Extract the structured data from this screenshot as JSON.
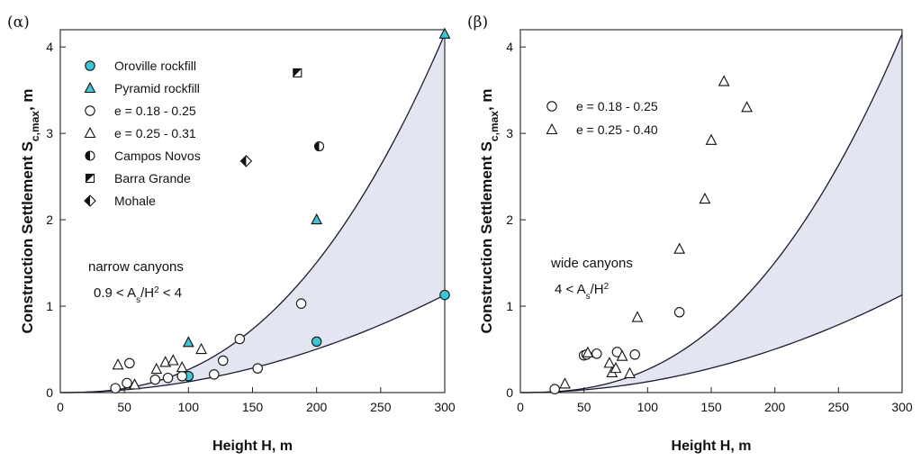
{
  "chart_data": [
    {
      "type": "scatter",
      "panel_label": "(α)",
      "ylabel": "Construction Settlement S",
      "ylabel_sub": "c,max",
      "ylabel_unit": ", m",
      "xlabel": "Height H, m",
      "xlim": [
        0,
        300
      ],
      "ylim": [
        0,
        4.2
      ],
      "xticks": [
        0,
        50,
        100,
        150,
        200,
        250,
        300
      ],
      "yticks": [
        0,
        1,
        2,
        3,
        4
      ],
      "grid": false,
      "legend_position": "top-left",
      "annotation_line1": "narrow canyons",
      "annotation_line2_prefix": "0.9 < A",
      "annotation_line2_sub": "s",
      "annotation_line2_mid": "/H",
      "annotation_line2_sup": "2",
      "annotation_line2_suffix": " < 4",
      "envelope": {
        "upper": {
          "x_end": 300,
          "y_end": 4.15,
          "exponent": 2.5
        },
        "lower": {
          "x_end": 300,
          "y_end": 1.13,
          "exponent": 2.0
        },
        "fill": "#e3e6f1"
      },
      "series": [
        {
          "name": "Oroville rockfill",
          "marker": "circle",
          "fill": "#3cc6d6",
          "points": [
            [
              100,
              0.19
            ],
            [
              200,
              0.59
            ],
            [
              300,
              1.13
            ]
          ]
        },
        {
          "name": "Pyramid rockfill",
          "marker": "triangle",
          "fill": "#3cc6d6",
          "points": [
            [
              100,
              0.58
            ],
            [
              200,
              2.0
            ],
            [
              300,
              4.15
            ]
          ]
        },
        {
          "name": "e = 0.18 - 0.25",
          "marker": "circle",
          "fill": "#ffffff",
          "points": [
            [
              43,
              0.05
            ],
            [
              52,
              0.11
            ],
            [
              54,
              0.34
            ],
            [
              74,
              0.15
            ],
            [
              84,
              0.17
            ],
            [
              95,
              0.19
            ],
            [
              120,
              0.21
            ],
            [
              127,
              0.37
            ],
            [
              140,
              0.62
            ],
            [
              154,
              0.28
            ],
            [
              188,
              1.03
            ]
          ]
        },
        {
          "name": "e = 0.25 - 0.31",
          "marker": "triangle",
          "fill": "#ffffff",
          "points": [
            [
              45,
              0.32
            ],
            [
              58,
              0.09
            ],
            [
              75,
              0.27
            ],
            [
              82,
              0.35
            ],
            [
              88,
              0.37
            ],
            [
              95,
              0.29
            ],
            [
              110,
              0.5
            ]
          ]
        },
        {
          "name": "Campos Novos",
          "marker": "half-circle",
          "fill": "#111111",
          "points": [
            [
              202,
              2.85
            ]
          ]
        },
        {
          "name": "Barra Grande",
          "marker": "half-square",
          "fill": "#111111",
          "points": [
            [
              185,
              3.7
            ]
          ]
        },
        {
          "name": "Mohale",
          "marker": "half-diamond",
          "fill": "#111111",
          "points": [
            [
              145,
              2.68
            ]
          ]
        }
      ]
    },
    {
      "type": "scatter",
      "panel_label": "(β)",
      "ylabel": "Construction Settlement S",
      "ylabel_sub": "c,max",
      "ylabel_unit": ", m",
      "xlabel": "Height H, m",
      "xlim": [
        0,
        300
      ],
      "ylim": [
        0,
        4.2
      ],
      "xticks": [
        0,
        50,
        100,
        150,
        200,
        250,
        300
      ],
      "yticks": [
        0,
        1,
        2,
        3,
        4
      ],
      "grid": false,
      "legend_position": "top-left",
      "annotation_line1": "wide canyons",
      "annotation_line2_prefix": "4 < A",
      "annotation_line2_sub": "s",
      "annotation_line2_mid": "/H",
      "annotation_line2_sup": "2",
      "annotation_line2_suffix": "",
      "envelope": {
        "upper": {
          "x_end": 300,
          "y_end": 4.15,
          "exponent": 2.5
        },
        "lower": {
          "x_end": 300,
          "y_end": 1.13,
          "exponent": 2.0
        },
        "fill": "#e3e6f1"
      },
      "series": [
        {
          "name": "e = 0.18 - 0.25",
          "marker": "circle",
          "fill": "#ffffff",
          "points": [
            [
              27,
              0.04
            ],
            [
              50,
              0.43
            ],
            [
              52,
              0.44
            ],
            [
              60,
              0.45
            ],
            [
              76,
              0.47
            ],
            [
              90,
              0.44
            ],
            [
              125,
              0.93
            ]
          ]
        },
        {
          "name": "e = 0.25 - 0.40",
          "marker": "triangle",
          "fill": "#ffffff",
          "points": [
            [
              35,
              0.1
            ],
            [
              53,
              0.46
            ],
            [
              70,
              0.34
            ],
            [
              72,
              0.23
            ],
            [
              75,
              0.28
            ],
            [
              80,
              0.42
            ],
            [
              86,
              0.22
            ],
            [
              92,
              0.87
            ],
            [
              125,
              1.66
            ],
            [
              145,
              2.24
            ],
            [
              150,
              2.92
            ],
            [
              160,
              3.6
            ],
            [
              178,
              3.3
            ]
          ]
        }
      ]
    }
  ]
}
